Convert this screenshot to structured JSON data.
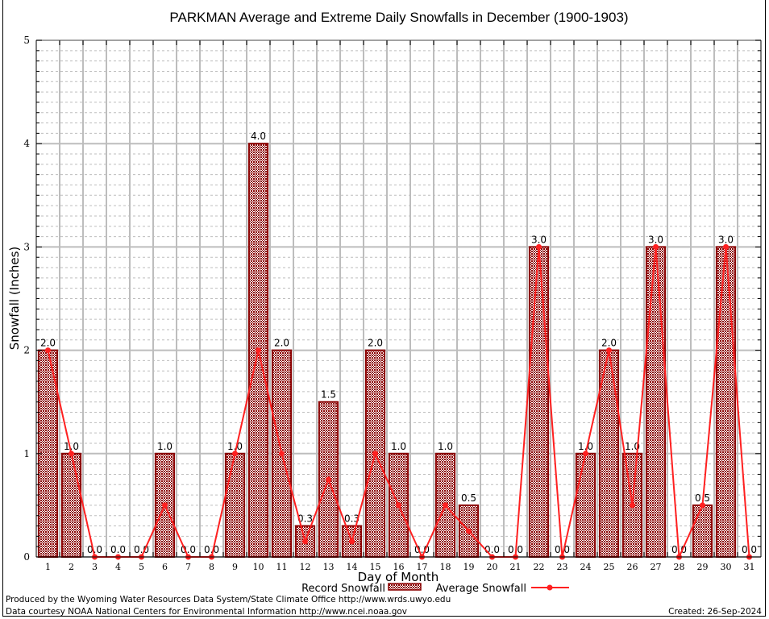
{
  "chart_data": {
    "type": "bar",
    "title": "PARKMAN Average and Extreme Daily Snowfalls in December (1900-1903)",
    "xlabel": "Day of Month",
    "ylabel": "Snowfall (Inches)",
    "ylim": [
      0,
      5
    ],
    "yticks": [
      0,
      1,
      2,
      3,
      4,
      5
    ],
    "grid": true,
    "legend_position": "bottom-center",
    "categories": [
      "1",
      "2",
      "3",
      "4",
      "5",
      "6",
      "7",
      "8",
      "9",
      "10",
      "11",
      "12",
      "13",
      "14",
      "15",
      "16",
      "17",
      "18",
      "19",
      "20",
      "21",
      "22",
      "23",
      "24",
      "25",
      "26",
      "27",
      "28",
      "29",
      "30",
      "31"
    ],
    "series": [
      {
        "name": "Record Snowfall",
        "type": "bar",
        "color": "#8b0000",
        "values": [
          2.0,
          1.0,
          0.0,
          0.0,
          0.0,
          1.0,
          0.0,
          0.0,
          1.0,
          4.0,
          2.0,
          0.3,
          1.5,
          0.3,
          2.0,
          1.0,
          0.0,
          1.0,
          0.5,
          0.0,
          0.0,
          3.0,
          0.0,
          1.0,
          2.0,
          1.0,
          3.0,
          0.0,
          0.5,
          3.0,
          0.0
        ],
        "labels": [
          "2.0",
          "1.0",
          "0.0",
          "0.0",
          "0.0",
          "1.0",
          "0.0",
          "0.0",
          "1.0",
          "4.0",
          "2.0",
          "0.3",
          "1.5",
          "0.3",
          "2.0",
          "1.0",
          "0.0",
          "1.0",
          "0.5",
          "0.0",
          "0.0",
          "3.0",
          "0.0",
          "1.0",
          "2.0",
          "1.0",
          "3.0",
          "0.0",
          "0.5",
          "3.0",
          "0.0"
        ]
      },
      {
        "name": "Average Snowfall",
        "type": "line",
        "color": "#ff2020",
        "values": [
          2.0,
          1.0,
          0.0,
          0.0,
          0.0,
          0.5,
          0.0,
          0.0,
          1.0,
          2.0,
          1.0,
          0.15,
          0.75,
          0.15,
          1.0,
          0.5,
          0.0,
          0.5,
          0.25,
          0.0,
          0.0,
          3.0,
          0.0,
          1.0,
          2.0,
          0.5,
          3.0,
          0.0,
          0.5,
          3.0,
          0.0
        ]
      }
    ]
  },
  "footer": {
    "produced_by": "Produced by the Wyoming Water Resources Data System/State Climate Office http://www.wrds.uwyo.edu",
    "data_courtesy": "Data courtesy NOAA National Centers for Environmental Information http://www.ncei.noaa.gov",
    "created": "Created: 26-Sep-2024"
  }
}
